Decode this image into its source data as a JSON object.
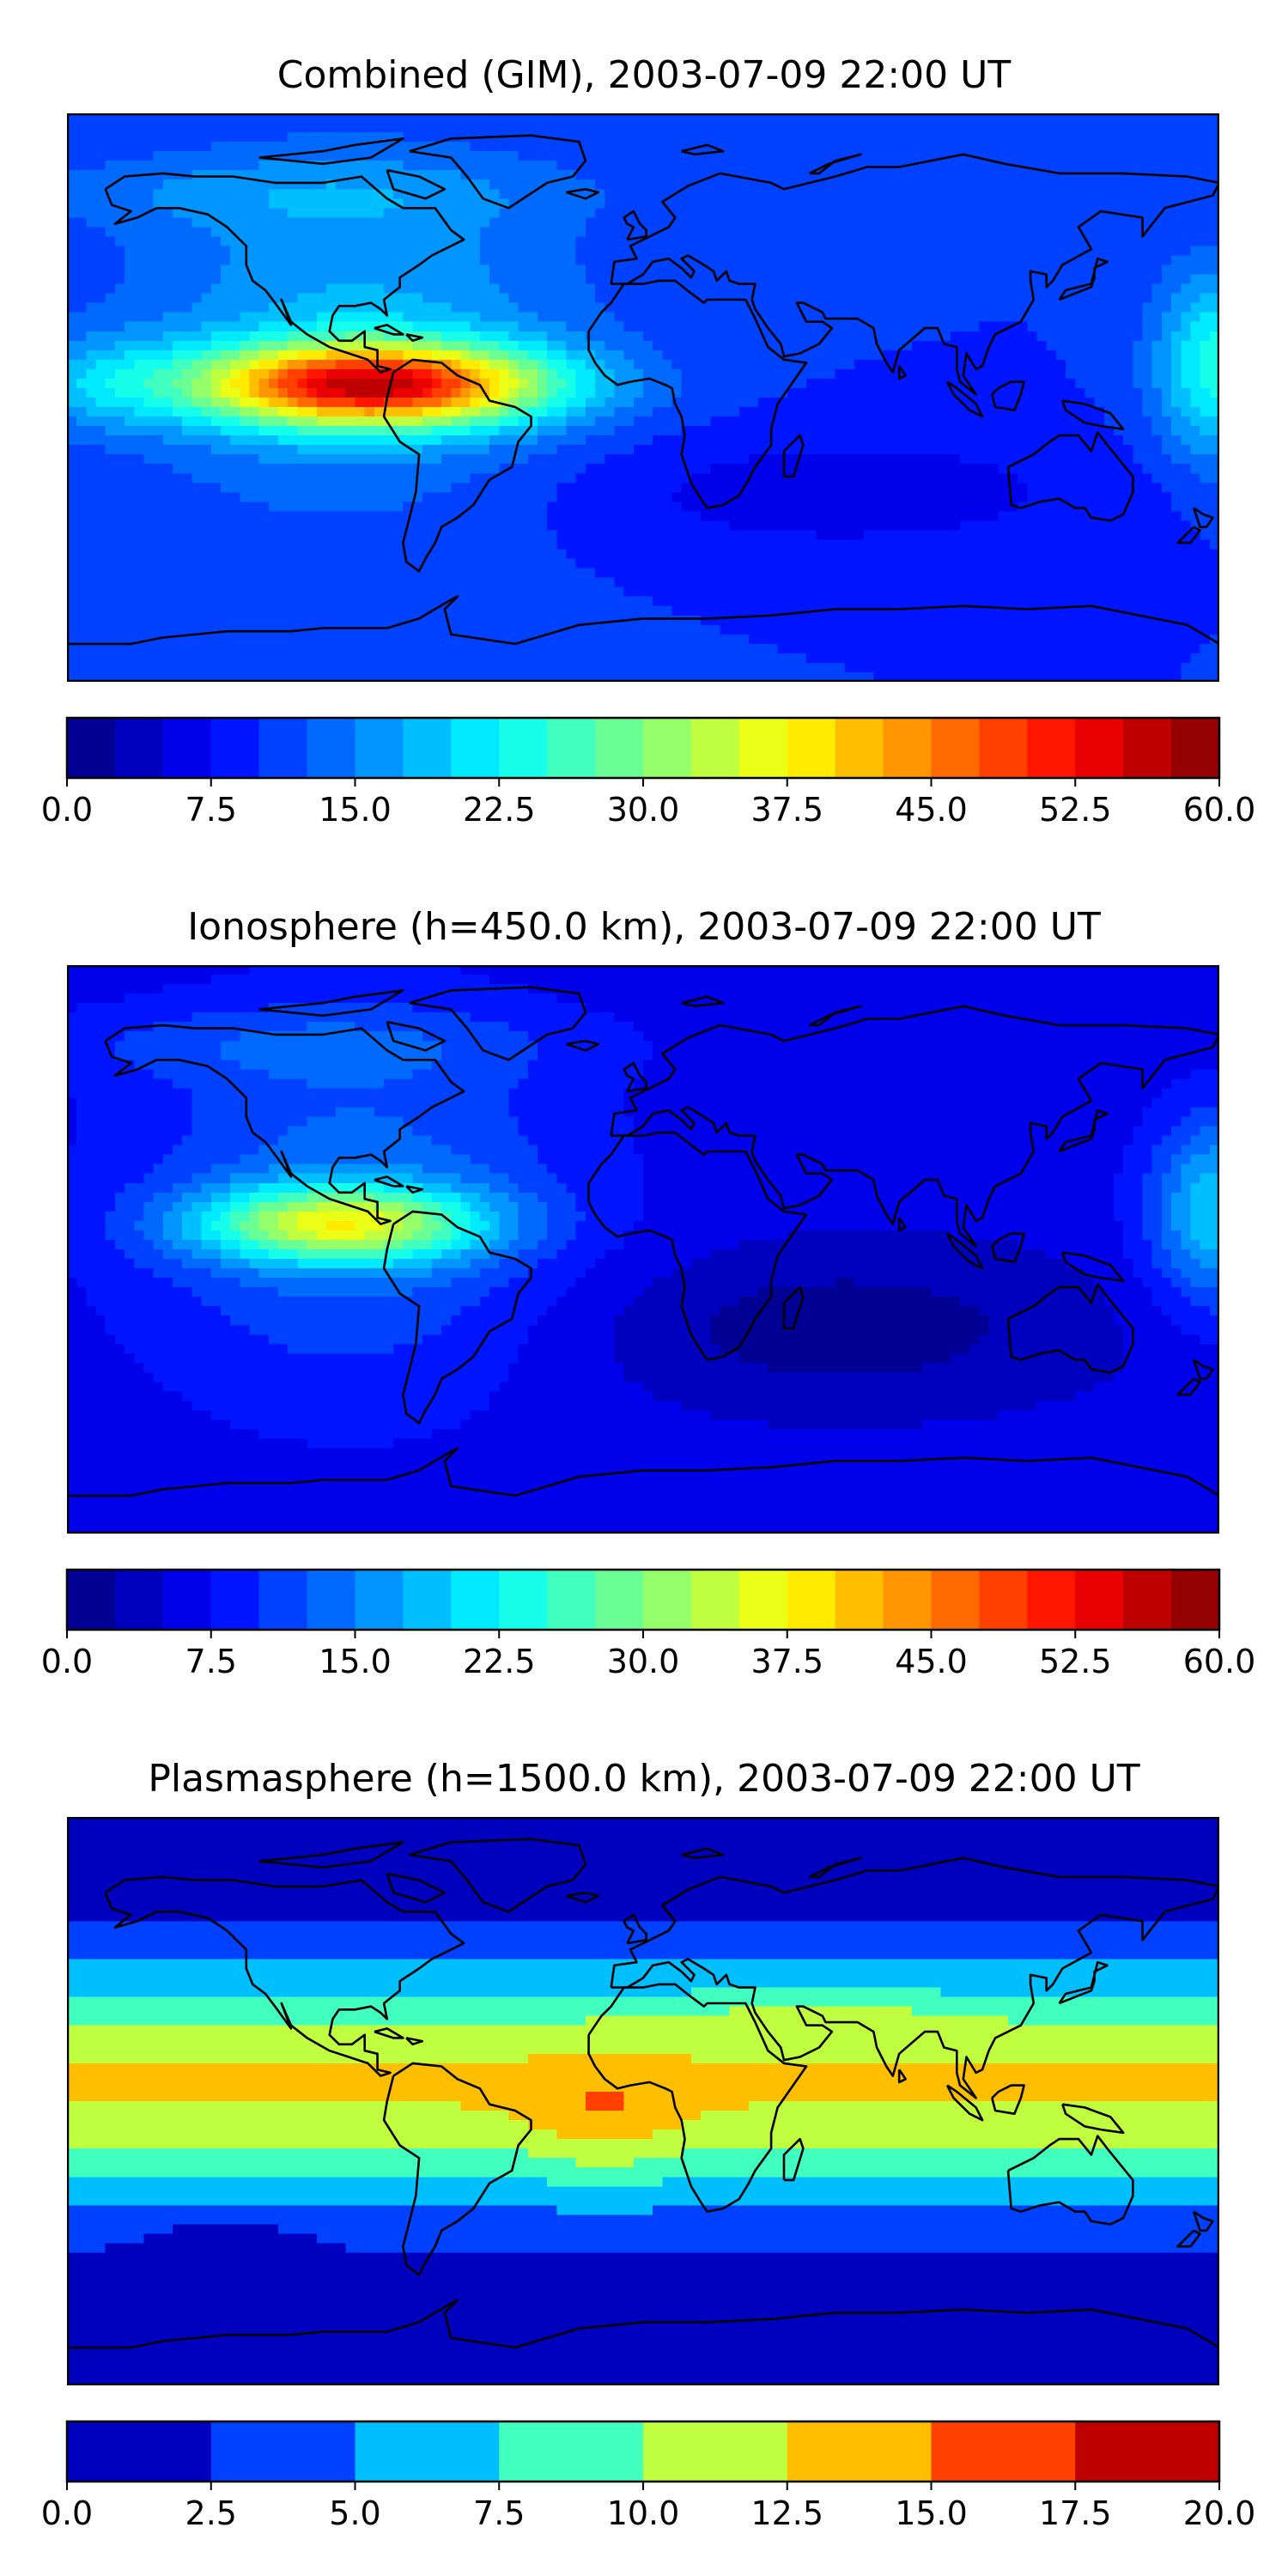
{
  "panels": [
    {
      "title": "Combined (GIM), 2003-07-09 22:00 UT",
      "colorbar": {
        "min": 0,
        "max": 60,
        "bands": 24,
        "tick_labels": [
          "0.0",
          "7.5",
          "15.0",
          "22.5",
          "30.0",
          "37.5",
          "45.0",
          "52.5",
          "60.0"
        ]
      }
    },
    {
      "title": "Ionosphere  (h=450.0 km), 2003-07-09 22:00 UT",
      "colorbar": {
        "min": 0,
        "max": 60,
        "bands": 24,
        "tick_labels": [
          "0.0",
          "7.5",
          "15.0",
          "22.5",
          "30.0",
          "37.5",
          "45.0",
          "52.5",
          "60.0"
        ]
      }
    },
    {
      "title": "Plasmasphere (h=1500.0 km), 2003-07-09 22:00 UT",
      "colorbar": {
        "min": 0,
        "max": 20,
        "bands": 8,
        "tick_labels": [
          "0.0",
          "2.5",
          "5.0",
          "7.5",
          "10.0",
          "12.5",
          "15.0",
          "17.5",
          "20.0"
        ]
      }
    }
  ],
  "colors": {
    "coastline": "#000000",
    "frame": "#000000",
    "colormap": "jet"
  }
}
